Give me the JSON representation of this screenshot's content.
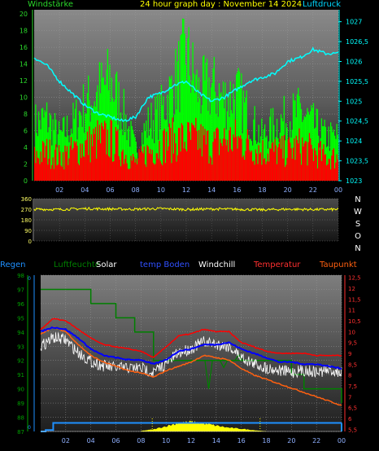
{
  "header": {
    "title": "24 hour graph day : November 14 2024",
    "left_label": "Windstärke",
    "right_label": "Luftdruck"
  },
  "colors": {
    "wind_green": "#00ff00",
    "wind_red": "#ff0000",
    "pressure": "#00ffff",
    "wind_dir": "#ffff00",
    "humidity": "#008000",
    "solar": "#ffff00",
    "soil_temp": "#0000ff",
    "windchill": "#ffffff",
    "temperature": "#ff0000",
    "dewpoint": "#ff6010",
    "rain": "#1e90ff"
  },
  "legend_row": {
    "rain": "Regen",
    "humidity": "Luftfeuchte",
    "solar": "Solar",
    "soil_temp": "temp Boden",
    "windchill": "Windchill",
    "temperature": "Temperatur",
    "dewpoint": "Taupunkt"
  },
  "chart_data": [
    {
      "type": "bar",
      "name": "wind",
      "title": "24 hour graph day : November 14 2024",
      "ylabel_left": "Windstärke",
      "ylabel_right": "Luftdruck",
      "x_ticks": [
        "02",
        "04",
        "06",
        "08",
        "10",
        "12",
        "14",
        "16",
        "18",
        "20",
        "22",
        "00"
      ],
      "y_left_ticks": [
        "0",
        "2",
        "4",
        "6",
        "8",
        "10",
        "12",
        "14",
        "16",
        "18",
        "20"
      ],
      "y_right_ticks": [
        "1023",
        "1023,5",
        "1024",
        "1024,5",
        "1025",
        "1025,5",
        "1026",
        "1026,5",
        "1027"
      ],
      "ylim_left": [
        0,
        20.5
      ],
      "ylim_right": [
        1023,
        1027.3
      ],
      "xlim_hours": [
        0,
        24
      ],
      "series": [
        {
          "name": "gust",
          "color": "#00ff00",
          "x": [
            0,
            1,
            2,
            3,
            4,
            5,
            6,
            7,
            8,
            9,
            10,
            11,
            12,
            13,
            14,
            15,
            16,
            17,
            18,
            19,
            20,
            21,
            22,
            23
          ],
          "values": [
            9,
            10,
            7,
            9,
            12,
            14,
            16,
            11,
            5,
            9,
            11,
            15,
            20,
            14,
            15,
            13,
            14,
            10,
            7,
            9,
            10,
            11,
            9,
            7
          ]
        },
        {
          "name": "mean",
          "color": "#ff0000",
          "x": [
            0,
            1,
            2,
            3,
            4,
            5,
            6,
            7,
            8,
            9,
            10,
            11,
            12,
            13,
            14,
            15,
            16,
            17,
            18,
            19,
            20,
            21,
            22,
            23
          ],
          "values": [
            4,
            5,
            4,
            5,
            6,
            7,
            7,
            5,
            3,
            5,
            6,
            7,
            7,
            7,
            6,
            7,
            7,
            6,
            5,
            5,
            5,
            6,
            5,
            4
          ]
        },
        {
          "name": "pressure",
          "color": "#00ffff",
          "x": [
            0,
            1,
            2,
            3,
            4,
            5,
            6,
            7,
            8,
            9,
            10,
            11,
            12,
            13,
            14,
            15,
            16,
            17,
            18,
            19,
            20,
            21,
            22,
            23,
            24
          ],
          "values": [
            1026.1,
            1025.9,
            1025.5,
            1025.2,
            1024.9,
            1024.7,
            1024.6,
            1024.5,
            1024.6,
            1025.1,
            1025.2,
            1025.4,
            1025.5,
            1025.2,
            1025.0,
            1025.1,
            1025.3,
            1025.5,
            1025.6,
            1025.7,
            1026.0,
            1026.1,
            1026.3,
            1026.2,
            1026.2
          ]
        }
      ]
    },
    {
      "type": "line",
      "name": "wind_direction",
      "y_ticks": [
        "0",
        "90",
        "180",
        "270",
        "360"
      ],
      "ylim": [
        0,
        360
      ],
      "compass": [
        "N",
        "W",
        "S",
        "O",
        "N"
      ],
      "series": [
        {
          "name": "direction",
          "color": "#ffff00",
          "x": [
            0,
            2,
            4,
            6,
            8,
            10,
            12,
            14,
            16,
            18,
            20,
            22,
            24
          ],
          "values": [
            270,
            268,
            275,
            272,
            270,
            275,
            268,
            272,
            270,
            265,
            270,
            268,
            268
          ]
        }
      ]
    },
    {
      "type": "line",
      "name": "temperature_humidity",
      "x_ticks": [
        "02",
        "04",
        "06",
        "08",
        "10",
        "12",
        "14",
        "16",
        "18",
        "20",
        "22",
        "00"
      ],
      "y_left_ticks": [
        "87",
        "88",
        "89",
        "90",
        "91",
        "92",
        "93",
        "94",
        "95",
        "96",
        "97",
        "98"
      ],
      "y_right_ticks": [
        "5,5",
        "6",
        "6,5",
        "7",
        "7,5",
        "8",
        "8,5",
        "9",
        "9,5",
        "10",
        "10,5",
        "11",
        "11,5",
        "12",
        "12,5"
      ],
      "ylim_left": [
        87,
        98
      ],
      "ylim_right": [
        5.4,
        12.6
      ],
      "series": [
        {
          "name": "humidity",
          "color": "#008000",
          "x": [
            0,
            1,
            3,
            4,
            5,
            6,
            7,
            7.5,
            8,
            9,
            11,
            14,
            16,
            19,
            20,
            21,
            22,
            23,
            24
          ],
          "values": [
            97,
            97,
            97,
            96,
            96,
            95,
            95,
            94,
            94,
            92,
            92,
            92,
            92,
            92,
            91,
            90,
            90,
            90,
            89
          ]
        },
        {
          "name": "temperature",
          "color": "#ff0000",
          "x": [
            0,
            1,
            2,
            3,
            4,
            5,
            6,
            7,
            8,
            9,
            10,
            11,
            12,
            13,
            14,
            15,
            16,
            17,
            18,
            19,
            20,
            21,
            22,
            23,
            24
          ],
          "values": [
            10.1,
            10.6,
            10.5,
            10.1,
            9.7,
            9.4,
            9.3,
            9.2,
            9.1,
            8.8,
            9.3,
            9.8,
            9.9,
            10.1,
            10.0,
            10.0,
            9.5,
            9.3,
            9.1,
            9.0,
            9.0,
            9.0,
            8.9,
            8.9,
            8.9
          ]
        },
        {
          "name": "soil_temp",
          "color": "#0000ff",
          "x": [
            0,
            1,
            2,
            3,
            4,
            5,
            6,
            7,
            8,
            9,
            10,
            11,
            12,
            13,
            14,
            15,
            16,
            17,
            18,
            19,
            20,
            21,
            22,
            23,
            24
          ],
          "values": [
            10.0,
            10.2,
            10.1,
            9.7,
            9.2,
            8.9,
            8.8,
            8.7,
            8.7,
            8.5,
            8.7,
            9.1,
            9.2,
            9.4,
            9.4,
            9.5,
            9.2,
            9.0,
            8.8,
            8.6,
            8.6,
            8.5,
            8.5,
            8.4,
            8.3
          ]
        },
        {
          "name": "windchill",
          "color": "#ffffff",
          "x": [
            0,
            1,
            2,
            3,
            4,
            5,
            6,
            7,
            8,
            9,
            10,
            11,
            12,
            13,
            14,
            15,
            16,
            17,
            18,
            19,
            20,
            21,
            22,
            23,
            24
          ],
          "values": [
            9.6,
            10.0,
            9.9,
            9.3,
            8.9,
            8.7,
            8.6,
            8.6,
            8.6,
            8.4,
            8.8,
            9.3,
            9.5,
            9.8,
            9.7,
            9.6,
            9.1,
            8.8,
            8.6,
            8.5,
            8.4,
            8.5,
            8.4,
            8.5,
            8.4
          ]
        },
        {
          "name": "dewpoint",
          "color": "#ff6010",
          "x": [
            0,
            1,
            2,
            3,
            4,
            5,
            6,
            7,
            8,
            9,
            10,
            11,
            12,
            13,
            14,
            15,
            16,
            17,
            18,
            19,
            20,
            21,
            22,
            23,
            24
          ],
          "values": [
            9.9,
            10.2,
            10.0,
            9.4,
            8.9,
            8.6,
            8.4,
            8.2,
            8.1,
            7.9,
            8.2,
            8.4,
            8.6,
            8.9,
            8.8,
            8.7,
            8.3,
            8.0,
            7.8,
            7.6,
            7.4,
            7.2,
            7.0,
            6.8,
            6.6
          ]
        },
        {
          "name": "rain",
          "color": "#1e90ff",
          "x": [
            0,
            0.4,
            1,
            2,
            24
          ],
          "values": [
            87,
            87.1,
            87.6,
            87.6,
            87.6
          ]
        },
        {
          "name": "solar",
          "color": "#ffff00",
          "x": [
            8,
            9,
            10,
            11,
            12,
            13,
            14,
            15,
            16,
            17,
            18
          ],
          "values": [
            0.05,
            0.2,
            0.5,
            0.8,
            0.9,
            0.75,
            0.55,
            0.35,
            0.25,
            0.12,
            0.02
          ]
        }
      ]
    }
  ]
}
